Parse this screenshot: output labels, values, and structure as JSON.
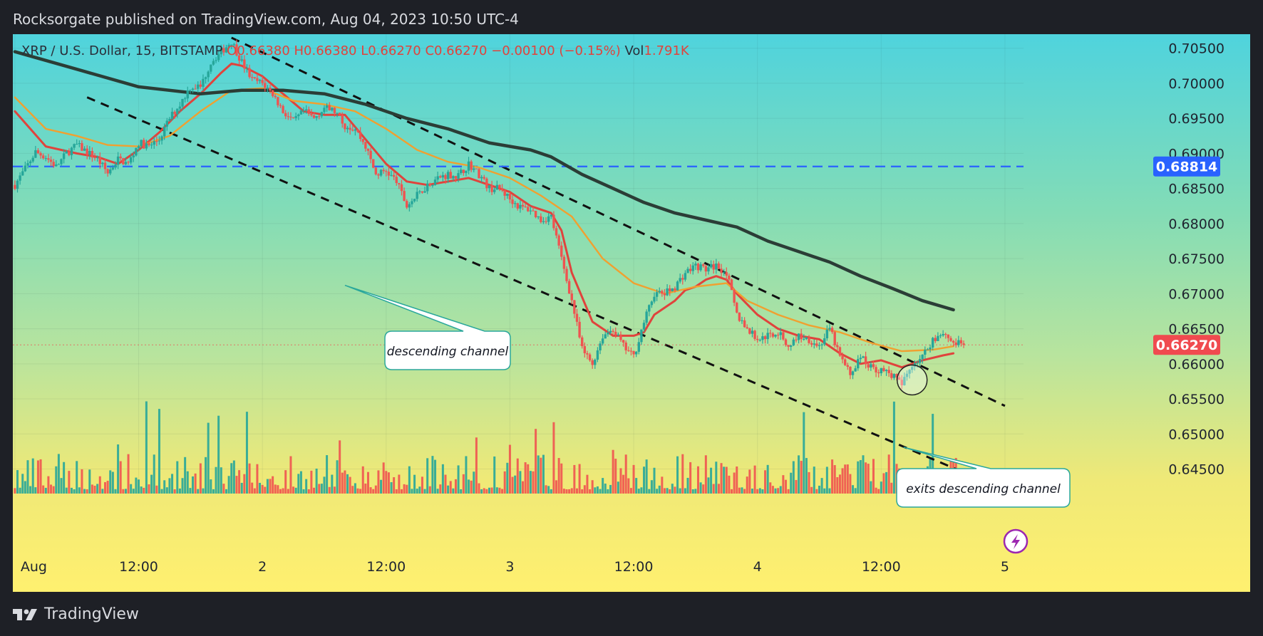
{
  "header": {
    "publisher_text": "Rocksorgate published on TradingView.com, Aug 04, 2023 10:50 UTC-4"
  },
  "legend": {
    "symbol": "XRP / U.S. Dollar, 15, BITSTAMP",
    "open": "O0.66380",
    "high": "H0.66380",
    "low": "L0.66270",
    "close": "C0.66270",
    "change": "−0.00100 (−0.15%)",
    "vol_label": "Vol",
    "vol_value": "1.791K"
  },
  "footer": {
    "brand": "TradingView"
  },
  "colors": {
    "up_candle": "#26a69a",
    "down_candle": "#ef5350",
    "ma_fast": "#e0433c",
    "ma_mid": "#f0a030",
    "ma_slow": "#2b3d36",
    "hline": "#2962ff",
    "last_price_badge": "#f04a4f",
    "hline_badge": "#2962ff"
  },
  "chart_data": {
    "type": "candlestick",
    "symbol": "XRP / U.S. Dollar",
    "interval": "15",
    "exchange": "BITSTAMP",
    "y_ticks": [
      "0.70500",
      "0.70000",
      "0.69500",
      "0.69000",
      "0.68500",
      "0.68000",
      "0.67500",
      "0.67000",
      "0.66500",
      "0.66000",
      "0.65500",
      "0.65000",
      "0.64500"
    ],
    "x_ticks": [
      {
        "t": 0,
        "label": "Aug"
      },
      {
        "t": 12,
        "label": "12:00"
      },
      {
        "t": 24,
        "label": "2"
      },
      {
        "t": 36,
        "label": "12:00"
      },
      {
        "t": 48,
        "label": "3"
      },
      {
        "t": 60,
        "label": "12:00"
      },
      {
        "t": 72,
        "label": "4"
      },
      {
        "t": 84,
        "label": "12:00"
      },
      {
        "t": 96,
        "label": "5"
      }
    ],
    "ylim": [
      0.6415,
      0.707
    ],
    "xlim": [
      -0.2,
      97.8
    ],
    "price_path": [
      [
        0.0,
        0.6855
      ],
      [
        1.0,
        0.6878
      ],
      [
        2.0,
        0.6902
      ],
      [
        3.0,
        0.6895
      ],
      [
        4.0,
        0.6881
      ],
      [
        5.0,
        0.69
      ],
      [
        6.0,
        0.6912
      ],
      [
        7.0,
        0.6902
      ],
      [
        8.0,
        0.6892
      ],
      [
        9.0,
        0.6872
      ],
      [
        10.0,
        0.6892
      ],
      [
        11.0,
        0.6885
      ],
      [
        12.0,
        0.6915
      ],
      [
        13.0,
        0.691
      ],
      [
        14.0,
        0.692
      ],
      [
        15.0,
        0.695
      ],
      [
        16.0,
        0.697
      ],
      [
        17.0,
        0.6995
      ],
      [
        18.0,
        0.6995
      ],
      [
        19.0,
        0.703
      ],
      [
        20.0,
        0.7045
      ],
      [
        21.0,
        0.706
      ],
      [
        22.0,
        0.703
      ],
      [
        23.0,
        0.7005
      ],
      [
        24.0,
        0.7
      ],
      [
        25.0,
        0.6985
      ],
      [
        26.0,
        0.696
      ],
      [
        27.0,
        0.6945
      ],
      [
        28.0,
        0.696
      ],
      [
        29.0,
        0.695
      ],
      [
        30.0,
        0.6965
      ],
      [
        31.0,
        0.696
      ],
      [
        32.0,
        0.694
      ],
      [
        33.0,
        0.6935
      ],
      [
        34.0,
        0.691
      ],
      [
        35.0,
        0.687
      ],
      [
        36.0,
        0.6875
      ],
      [
        37.0,
        0.686
      ],
      [
        38.0,
        0.6825
      ],
      [
        39.0,
        0.684
      ],
      [
        40.0,
        0.6855
      ],
      [
        41.0,
        0.6865
      ],
      [
        42.0,
        0.687
      ],
      [
        43.0,
        0.6868
      ],
      [
        44.0,
        0.6885
      ],
      [
        45.0,
        0.687
      ],
      [
        46.0,
        0.685
      ],
      [
        47.0,
        0.685
      ],
      [
        48.0,
        0.6835
      ],
      [
        49.0,
        0.6823
      ],
      [
        50.0,
        0.682
      ],
      [
        51.0,
        0.6805
      ],
      [
        52.0,
        0.681
      ],
      [
        53.0,
        0.675
      ],
      [
        54.0,
        0.669
      ],
      [
        55.0,
        0.662
      ],
      [
        56.0,
        0.66
      ],
      [
        57.0,
        0.664
      ],
      [
        58.0,
        0.665
      ],
      [
        59.0,
        0.6625
      ],
      [
        60.0,
        0.661
      ],
      [
        61.0,
        0.666
      ],
      [
        62.0,
        0.67
      ],
      [
        63.0,
        0.67
      ],
      [
        64.0,
        0.671
      ],
      [
        65.0,
        0.673
      ],
      [
        66.0,
        0.674
      ],
      [
        67.0,
        0.6735
      ],
      [
        68.0,
        0.674
      ],
      [
        69.0,
        0.673
      ],
      [
        70.0,
        0.667
      ],
      [
        71.0,
        0.665
      ],
      [
        72.0,
        0.6635
      ],
      [
        73.0,
        0.664
      ],
      [
        74.0,
        0.6645
      ],
      [
        75.0,
        0.6625
      ],
      [
        76.0,
        0.664
      ],
      [
        77.0,
        0.6635
      ],
      [
        78.0,
        0.6625
      ],
      [
        79.0,
        0.665
      ],
      [
        80.0,
        0.661
      ],
      [
        81.0,
        0.6585
      ],
      [
        82.0,
        0.661
      ],
      [
        83.0,
        0.6595
      ],
      [
        84.0,
        0.659
      ],
      [
        85.0,
        0.6585
      ],
      [
        86.0,
        0.657
      ],
      [
        87.0,
        0.66
      ],
      [
        88.0,
        0.661
      ],
      [
        89.0,
        0.6635
      ],
      [
        90.0,
        0.6645
      ],
      [
        91.0,
        0.663
      ],
      [
        92.0,
        0.6627
      ]
    ],
    "indicators": [
      {
        "kind": "ma_fast",
        "points": [
          [
            0,
            0.696
          ],
          [
            3,
            0.691
          ],
          [
            6,
            0.69
          ],
          [
            8,
            0.6895
          ],
          [
            10,
            0.6885
          ],
          [
            12,
            0.6905
          ],
          [
            14,
            0.693
          ],
          [
            16,
            0.696
          ],
          [
            18,
            0.6985
          ],
          [
            20,
            0.7015
          ],
          [
            21,
            0.7028
          ],
          [
            22,
            0.7025
          ],
          [
            24,
            0.701
          ],
          [
            26,
            0.6985
          ],
          [
            28,
            0.696
          ],
          [
            30,
            0.6955
          ],
          [
            32,
            0.6955
          ],
          [
            34,
            0.692
          ],
          [
            36,
            0.6885
          ],
          [
            38,
            0.686
          ],
          [
            40,
            0.6855
          ],
          [
            42,
            0.686
          ],
          [
            44,
            0.6865
          ],
          [
            46,
            0.6855
          ],
          [
            48,
            0.6845
          ],
          [
            50,
            0.6825
          ],
          [
            52,
            0.6815
          ],
          [
            53,
            0.679
          ],
          [
            54,
            0.673
          ],
          [
            56,
            0.666
          ],
          [
            58,
            0.664
          ],
          [
            60,
            0.664
          ],
          [
            61,
            0.6645
          ],
          [
            62,
            0.667
          ],
          [
            64,
            0.669
          ],
          [
            65,
            0.6705
          ],
          [
            66,
            0.671
          ],
          [
            67,
            0.672
          ],
          [
            68,
            0.6725
          ],
          [
            69,
            0.672
          ],
          [
            70,
            0.67
          ],
          [
            72,
            0.667
          ],
          [
            74,
            0.665
          ],
          [
            76,
            0.664
          ],
          [
            78,
            0.6635
          ],
          [
            80,
            0.6615
          ],
          [
            82,
            0.66
          ],
          [
            84,
            0.6605
          ],
          [
            86,
            0.6595
          ],
          [
            88,
            0.6605
          ],
          [
            90,
            0.6612
          ],
          [
            91,
            0.6615
          ]
        ]
      },
      {
        "kind": "ma_mid",
        "points": [
          [
            0,
            0.698
          ],
          [
            3,
            0.6935
          ],
          [
            6,
            0.6925
          ],
          [
            9,
            0.6912
          ],
          [
            12,
            0.691
          ],
          [
            15,
            0.6925
          ],
          [
            18,
            0.696
          ],
          [
            21,
            0.699
          ],
          [
            24,
            0.6993
          ],
          [
            27,
            0.6975
          ],
          [
            30,
            0.697
          ],
          [
            33,
            0.696
          ],
          [
            36,
            0.6935
          ],
          [
            39,
            0.6905
          ],
          [
            42,
            0.6888
          ],
          [
            45,
            0.688
          ],
          [
            48,
            0.6865
          ],
          [
            51,
            0.684
          ],
          [
            54,
            0.681
          ],
          [
            57,
            0.675
          ],
          [
            60,
            0.6715
          ],
          [
            63,
            0.67
          ],
          [
            66,
            0.671
          ],
          [
            69,
            0.6715
          ],
          [
            71,
            0.669
          ],
          [
            74,
            0.667
          ],
          [
            77,
            0.6655
          ],
          [
            80,
            0.6645
          ],
          [
            83,
            0.663
          ],
          [
            86,
            0.6618
          ],
          [
            89,
            0.662
          ],
          [
            91,
            0.6625
          ]
        ]
      },
      {
        "kind": "ma_slow",
        "points": [
          [
            0,
            0.7045
          ],
          [
            6,
            0.702
          ],
          [
            12,
            0.6995
          ],
          [
            18,
            0.6985
          ],
          [
            22,
            0.699
          ],
          [
            26,
            0.699
          ],
          [
            30,
            0.6985
          ],
          [
            34,
            0.697
          ],
          [
            38,
            0.695
          ],
          [
            42,
            0.6935
          ],
          [
            46,
            0.6915
          ],
          [
            50,
            0.6905
          ],
          [
            52,
            0.6895
          ],
          [
            55,
            0.687
          ],
          [
            58,
            0.685
          ],
          [
            61,
            0.683
          ],
          [
            64,
            0.6815
          ],
          [
            67,
            0.6805
          ],
          [
            70,
            0.6795
          ],
          [
            73,
            0.6775
          ],
          [
            76,
            0.676
          ],
          [
            79,
            0.6745
          ],
          [
            82,
            0.6725
          ],
          [
            85,
            0.6708
          ],
          [
            88,
            0.669
          ],
          [
            91,
            0.6677
          ]
        ]
      }
    ],
    "trendlines": [
      {
        "start": [
          21.0,
          0.7065
        ],
        "end": [
          96.0,
          0.654
        ]
      },
      {
        "start": [
          7.0,
          0.698
        ],
        "end": [
          96.0,
          0.642
        ]
      }
    ],
    "horizontal_line": {
      "value": 0.68814,
      "label": "0.68814"
    },
    "last_price": {
      "value": 0.6627,
      "label": "0.66270"
    },
    "annotations": [
      {
        "text": "descending channel",
        "anchor": [
          32.0,
          0.6712
        ]
      },
      {
        "text": "exits descending channel",
        "anchor": [
          87.0,
          0.6577
        ]
      }
    ],
    "grid": true
  }
}
